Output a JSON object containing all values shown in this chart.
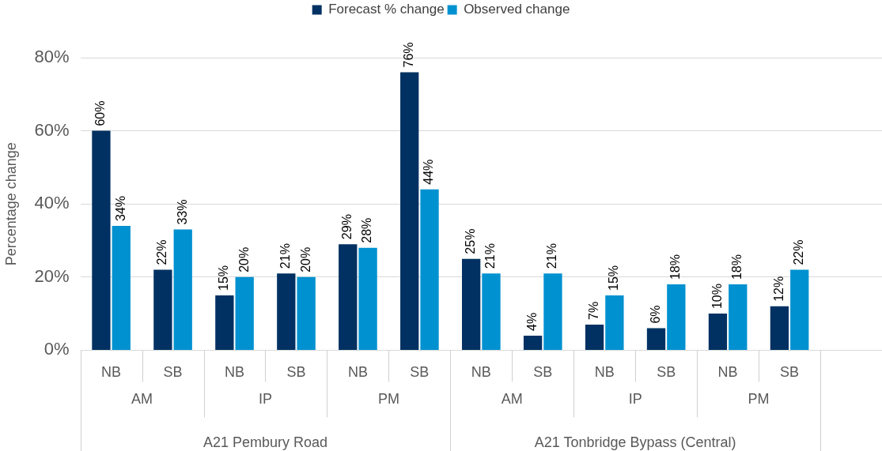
{
  "chart_data": {
    "type": "bar",
    "ylabel": "Percentage change",
    "categories": [
      "NB",
      "SB",
      "NB",
      "SB",
      "NB",
      "SB",
      "NB",
      "SB",
      "NB",
      "SB",
      "NB",
      "SB",
      null
    ],
    "series": [
      {
        "name": "Forecast % change",
        "color": "#003162",
        "values": [
          60,
          22,
          15,
          21,
          29,
          76,
          25,
          4,
          7,
          6,
          10,
          12,
          null
        ],
        "value_labels": [
          "60%",
          "22%",
          "15%",
          "21%",
          "29%",
          "76%",
          "25%",
          "4%",
          "7%",
          "6%",
          "10%",
          "12%",
          null
        ]
      },
      {
        "name": "Observed change",
        "color": "#0091d0",
        "values": [
          34,
          33,
          20,
          20,
          28,
          44,
          21,
          21,
          15,
          18,
          18,
          22,
          null
        ],
        "value_labels": [
          "34%",
          "33%",
          "20%",
          "20%",
          "28%",
          "44%",
          "21%",
          "21%",
          "15%",
          "18%",
          "18%",
          "22%",
          null
        ]
      }
    ],
    "ylim": [
      0,
      80
    ],
    "yticks": [
      {
        "value": 0,
        "label": "0%"
      },
      {
        "value": 20,
        "label": "20%"
      },
      {
        "value": 40,
        "label": "40%"
      },
      {
        "value": 60,
        "label": "60%"
      },
      {
        "value": 80,
        "label": "80%"
      }
    ],
    "annotations": [
      "AM",
      "IP",
      "PM",
      "AM",
      "IP",
      "PM",
      "A21 Pembury Road",
      "A21 Tonbridge Bypass (Central)"
    ],
    "grid": "y",
    "legend": "top"
  }
}
